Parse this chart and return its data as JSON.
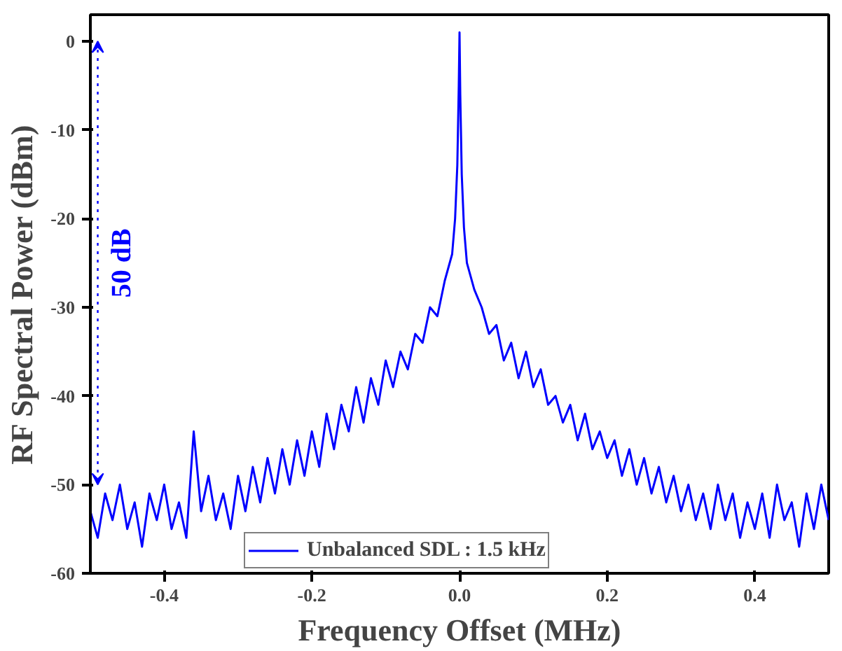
{
  "chart_data": {
    "type": "line",
    "xlabel": "Frequency Offset (MHz)",
    "ylabel": "RF Spectral Power (dBm)",
    "x": [
      -0.5,
      -0.49,
      -0.48,
      -0.47,
      -0.46,
      -0.45,
      -0.44,
      -0.43,
      -0.42,
      -0.41,
      -0.4,
      -0.39,
      -0.38,
      -0.37,
      -0.36,
      -0.35,
      -0.34,
      -0.33,
      -0.32,
      -0.31,
      -0.3,
      -0.29,
      -0.28,
      -0.27,
      -0.26,
      -0.25,
      -0.24,
      -0.23,
      -0.22,
      -0.21,
      -0.2,
      -0.19,
      -0.18,
      -0.17,
      -0.16,
      -0.15,
      -0.14,
      -0.13,
      -0.12,
      -0.11,
      -0.1,
      -0.09,
      -0.08,
      -0.07,
      -0.06,
      -0.05,
      -0.04,
      -0.03,
      -0.02,
      -0.01,
      -0.006,
      -0.003,
      -0.001,
      0,
      0.001,
      0.003,
      0.006,
      0.01,
      0.02,
      0.03,
      0.04,
      0.05,
      0.06,
      0.07,
      0.08,
      0.09,
      0.1,
      0.11,
      0.12,
      0.13,
      0.14,
      0.15,
      0.16,
      0.17,
      0.18,
      0.19,
      0.2,
      0.21,
      0.22,
      0.23,
      0.24,
      0.25,
      0.26,
      0.27,
      0.28,
      0.29,
      0.3,
      0.31,
      0.32,
      0.33,
      0.34,
      0.35,
      0.36,
      0.37,
      0.38,
      0.39,
      0.4,
      0.41,
      0.42,
      0.43,
      0.44,
      0.45,
      0.46,
      0.47,
      0.48,
      0.49,
      0.5
    ],
    "series": [
      {
        "name": "Unbalanced SDL : 1.5 kHz",
        "color": "#0000ff",
        "values": [
          -53,
          -56,
          -51,
          -54,
          -50,
          -55,
          -52,
          -57,
          -51,
          -54,
          -50,
          -55,
          -52,
          -56,
          -44,
          -53,
          -49,
          -54,
          -51,
          -55,
          -49,
          -53,
          -48,
          -52,
          -47,
          -51,
          -46,
          -50,
          -45,
          -49,
          -44,
          -48,
          -42,
          -46,
          -41,
          -44,
          -39,
          -43,
          -38,
          -41,
          -36,
          -39,
          -35,
          -37,
          -33,
          -34,
          -30,
          -31,
          -27,
          -24,
          -20,
          -14,
          -5,
          1,
          -6,
          -15,
          -21,
          -25,
          -28,
          -30,
          -33,
          -32,
          -36,
          -34,
          -38,
          -35,
          -39,
          -37,
          -41,
          -40,
          -43,
          -41,
          -45,
          -42,
          -46,
          -44,
          -47,
          -45,
          -49,
          -46,
          -50,
          -47,
          -51,
          -48,
          -52,
          -49,
          -53,
          -50,
          -54,
          -51,
          -55,
          -50,
          -54,
          -51,
          -56,
          -52,
          -55,
          -51,
          -56,
          -50,
          -54,
          -52,
          -57,
          -51,
          -55,
          -50,
          -54
        ]
      }
    ],
    "xlim": [
      -0.5,
      0.5
    ],
    "xticks": [
      {
        "value": -0.4,
        "label": "-0.4"
      },
      {
        "value": -0.2,
        "label": "-0.2"
      },
      {
        "value": 0,
        "label": "0.0"
      },
      {
        "value": 0.2,
        "label": "0.2"
      },
      {
        "value": 0.4,
        "label": "0.4"
      }
    ],
    "ylim": [
      -60,
      3
    ],
    "yticks": [
      -60,
      -50,
      -40,
      -30,
      -20,
      -10,
      0
    ],
    "annotations": [
      "50 dB"
    ],
    "grid": false,
    "legend": "bottom",
    "marker": "none",
    "line_style": "solid"
  }
}
